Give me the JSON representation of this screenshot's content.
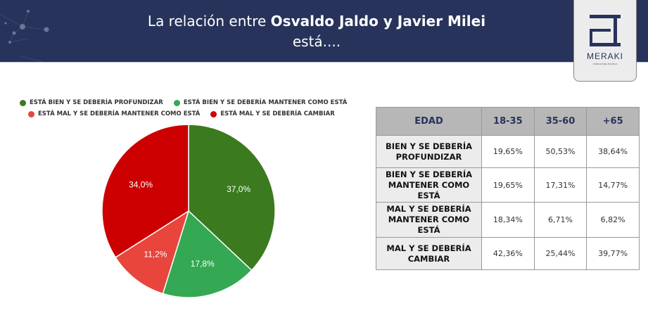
{
  "header": {
    "title_prefix": "La relación entre ",
    "title_bold": "Osvaldo Jaldo y Javier Milei",
    "title_line2": "está...."
  },
  "logo": {
    "text": "MERAKI",
    "subtitle": "CONSULTORA POLITICA"
  },
  "chart_data": {
    "type": "pie",
    "legend_position": "top",
    "labels": [
      "ESTÁ BIEN Y SE DEBERÍA PROFUNDIZAR",
      "ESTÁ BIEN Y SE DEBERÍA MANTENER COMO ESTÁ",
      "ESTÁ MAL Y SE DEBERÍA MANTENER COMO ESTÁ",
      "ESTÁ MAL Y SE DEBERÍA CAMBIAR"
    ],
    "values": [
      37.0,
      17.8,
      11.2,
      34.0
    ],
    "value_labels": [
      "37,0%",
      "17,8%",
      "11,2%",
      "34,0%"
    ],
    "colors": [
      "#3b7a1e",
      "#34a853",
      "#e8453c",
      "#cc0000"
    ]
  },
  "table": {
    "headers": [
      "EDAD",
      "18-35",
      "35-60",
      "+65"
    ],
    "rows": [
      {
        "label": "BIEN Y SE DEBERÍA PROFUNDIZAR",
        "values": [
          "19,65%",
          "50,53%",
          "38,64%"
        ]
      },
      {
        "label": "BIEN Y SE DEBERÍA MANTENER COMO ESTÁ",
        "values": [
          "19,65%",
          "17,31%",
          "14,77%"
        ]
      },
      {
        "label": "MAL Y SE DEBERÍA MANTENER COMO ESTÁ",
        "values": [
          "18,34%",
          "6,71%",
          "6,82%"
        ]
      },
      {
        "label": "MAL Y SE DEBERÍA CAMBIAR",
        "values": [
          "42,36%",
          "25,44%",
          "39,77%"
        ]
      }
    ]
  }
}
